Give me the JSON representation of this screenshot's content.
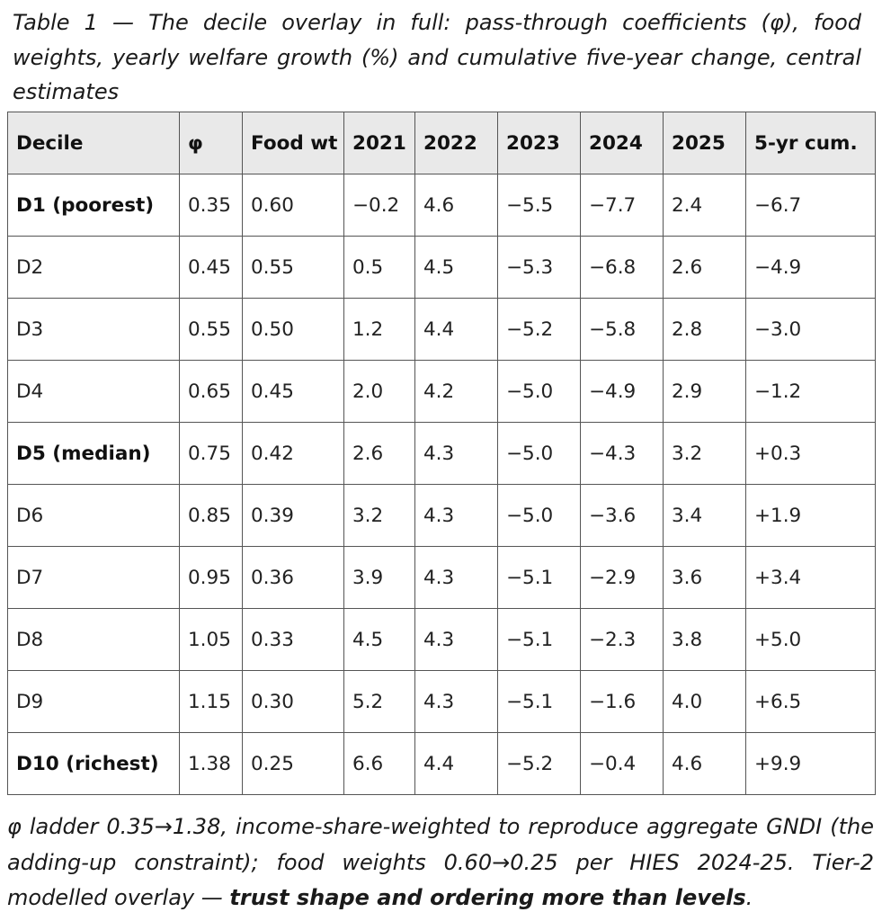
{
  "caption": "Table 1 — The decile overlay in full: pass-through coefficients (φ), food weights, yearly welfare growth (%) and cumulative five-year change, central estimates",
  "table": {
    "headers": [
      "Decile",
      "φ",
      "Food wt",
      "2021",
      "2022",
      "2023",
      "2024",
      "2025",
      "5-yr cum."
    ],
    "rows": [
      [
        "D1 (poorest)",
        "0.35",
        "0.60",
        "−0.2",
        "4.6",
        "−5.5",
        "−7.7",
        "2.4",
        "−6.7"
      ],
      [
        "D2",
        "0.45",
        "0.55",
        "0.5",
        "4.5",
        "−5.3",
        "−6.8",
        "2.6",
        "−4.9"
      ],
      [
        "D3",
        "0.55",
        "0.50",
        "1.2",
        "4.4",
        "−5.2",
        "−5.8",
        "2.8",
        "−3.0"
      ],
      [
        "D4",
        "0.65",
        "0.45",
        "2.0",
        "4.2",
        "−5.0",
        "−4.9",
        "2.9",
        "−1.2"
      ],
      [
        "D5 (median)",
        "0.75",
        "0.42",
        "2.6",
        "4.3",
        "−5.0",
        "−4.3",
        "3.2",
        "+0.3"
      ],
      [
        "D6",
        "0.85",
        "0.39",
        "3.2",
        "4.3",
        "−5.0",
        "−3.6",
        "3.4",
        "+1.9"
      ],
      [
        "D7",
        "0.95",
        "0.36",
        "3.9",
        "4.3",
        "−5.1",
        "−2.9",
        "3.6",
        "+3.4"
      ],
      [
        "D8",
        "1.05",
        "0.33",
        "4.5",
        "4.3",
        "−5.1",
        "−2.3",
        "3.8",
        "+5.0"
      ],
      [
        "D9",
        "1.15",
        "0.30",
        "5.2",
        "4.3",
        "−5.1",
        "−1.6",
        "4.0",
        "+6.5"
      ],
      [
        "D10 (richest)",
        "1.38",
        "0.25",
        "6.6",
        "4.4",
        "−5.2",
        "−0.4",
        "4.6",
        "+9.9"
      ]
    ],
    "bold_rows": [
      "D1 (poorest)",
      "D5 (median)",
      "D10 (richest)"
    ]
  },
  "footnote": {
    "text": "φ ladder 0.35→1.38, income-share-weighted to reproduce aggregate GNDI (the adding-up constraint); food weights 0.60→0.25 per HIES 2024-25. Tier-2 modelled overlay — ",
    "emphasis": "trust shape and ordering more than levels",
    "end": "."
  }
}
